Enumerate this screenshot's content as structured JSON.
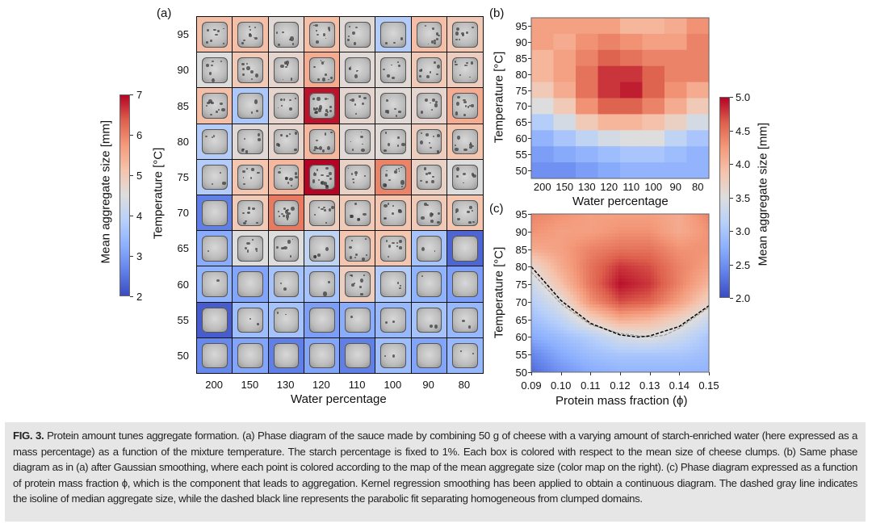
{
  "figure": {
    "panel_labels": {
      "a": "(a)",
      "b": "(b)",
      "c": "(c)"
    },
    "caption": {
      "label": "FIG. 3.",
      "text": " Protein amount tunes aggregate formation. (a) Phase diagram of the sauce made by combining 50 g of cheese with a varying amount of starch-enriched water (here expressed as a mass percentage) as a function of the mixture temperature. The starch percentage is fixed to 1%. Each box is colored with respect to the mean size of cheese clumps. (b) Same phase diagram as in (a) after Gaussian smoothing, where each point is colored according to the map of the mean aggregate size (color map on the right). (c) Phase diagram expressed as a function of protein mass fraction ϕ, which is the component that leads to aggregation. Kernel regression smoothing has been applied to obtain a continuous diagram. The dashed gray line indicates the isoline of median aggregate size, while the dashed black line represents the parabolic fit separating homogeneous from clumped domains."
    }
  },
  "colormap": {
    "name": "coolwarm",
    "low": "#3b4cc0",
    "mid": "#dddddd",
    "high": "#b40426"
  },
  "chart_data": [
    {
      "type": "heatmap",
      "panel": "a",
      "description_visual": "grid of sample photographs framed by color",
      "xlabel": "Water percentage",
      "ylabel": "Temperature [°C]",
      "categories": [
        "200",
        "150",
        "130",
        "120",
        "110",
        "100",
        "90",
        "80"
      ],
      "y_categories": [
        "95",
        "90",
        "85",
        "80",
        "75",
        "70",
        "65",
        "60",
        "55",
        "50"
      ],
      "values": [
        [
          5.2,
          5.2,
          4.6,
          5.2,
          4.6,
          3.8,
          5.2,
          5.0
        ],
        [
          4.5,
          5.0,
          4.7,
          5.5,
          4.6,
          4.6,
          5.0,
          4.9
        ],
        [
          5.2,
          3.7,
          4.7,
          6.9,
          4.7,
          4.6,
          4.7,
          5.5
        ],
        [
          3.8,
          4.6,
          4.7,
          5.3,
          4.6,
          4.6,
          4.9,
          5.1
        ],
        [
          3.8,
          5.1,
          5.3,
          7.0,
          4.8,
          6.0,
          4.8,
          4.5
        ],
        [
          2.6,
          5.0,
          6.1,
          4.9,
          5.0,
          5.1,
          5.0,
          5.1
        ],
        [
          3.2,
          4.5,
          4.5,
          4.0,
          5.1,
          5.1,
          3.6,
          2.3
        ],
        [
          3.3,
          3.1,
          3.6,
          3.6,
          4.9,
          3.8,
          3.3,
          3.0
        ],
        [
          2.2,
          3.5,
          3.6,
          3.0,
          3.2,
          3.4,
          3.6,
          3.4
        ],
        [
          2.7,
          3.1,
          2.6,
          3.1,
          2.6,
          3.5,
          3.1,
          3.4
        ]
      ],
      "colorbar": {
        "label": "Mean aggregate size [mm]",
        "range": [
          2,
          7
        ],
        "ticks": [
          "2",
          "3",
          "4",
          "5",
          "6",
          "7"
        ]
      }
    },
    {
      "type": "heatmap",
      "panel": "b",
      "xlabel": "Water percentage",
      "ylabel": "Temperature [°C]",
      "categories": [
        "200",
        "150",
        "130",
        "120",
        "110",
        "100",
        "90",
        "80"
      ],
      "y_categories": [
        "95",
        "90",
        "85",
        "80",
        "75",
        "70",
        "65",
        "60",
        "55",
        "50"
      ],
      "values": [
        [
          4.2,
          4.2,
          4.2,
          4.2,
          4.0,
          4.0,
          4.1,
          4.3
        ],
        [
          4.2,
          4.1,
          4.3,
          4.4,
          4.3,
          4.2,
          4.2,
          4.4
        ],
        [
          4.0,
          4.2,
          4.4,
          4.6,
          4.5,
          4.4,
          4.4,
          4.4
        ],
        [
          4.0,
          4.2,
          4.5,
          4.8,
          4.8,
          4.6,
          4.4,
          4.4
        ],
        [
          3.8,
          4.1,
          4.5,
          4.8,
          4.9,
          4.6,
          4.3,
          4.1
        ],
        [
          3.5,
          3.8,
          4.3,
          4.6,
          4.6,
          4.4,
          4.1,
          3.8
        ],
        [
          3.1,
          3.4,
          3.8,
          4.0,
          4.0,
          3.9,
          3.7,
          3.4
        ],
        [
          2.8,
          3.0,
          3.2,
          3.4,
          3.5,
          3.5,
          3.2,
          3.0
        ],
        [
          2.6,
          2.7,
          2.8,
          2.9,
          3.0,
          3.0,
          2.9,
          2.8
        ],
        [
          2.5,
          2.5,
          2.6,
          2.7,
          2.8,
          2.8,
          2.8,
          2.8
        ]
      ],
      "colorbar": {
        "label": "Mean aggregate size [mm]",
        "range": [
          2.0,
          5.0
        ],
        "ticks": [
          "2.0",
          "2.5",
          "3.0",
          "3.5",
          "4.0",
          "4.5",
          "5.0"
        ]
      }
    },
    {
      "type": "heatmap",
      "panel": "c",
      "xlabel": "Protein mass fraction (ϕ)",
      "ylabel": "Temperature [°C]",
      "xlim": [
        0.09,
        0.15
      ],
      "ylim": [
        50,
        95
      ],
      "x_ticks": [
        "0.09",
        "0.10",
        "0.11",
        "0.12",
        "0.13",
        "0.14",
        "0.15"
      ],
      "y_ticks": [
        "95",
        "90",
        "85",
        "80",
        "75",
        "70",
        "65",
        "60",
        "55",
        "50"
      ],
      "grid_x": [
        0.09,
        0.1,
        0.11,
        0.12,
        0.13,
        0.14,
        0.15
      ],
      "grid_y": [
        95,
        90,
        85,
        80,
        75,
        70,
        65,
        60,
        55,
        50
      ],
      "values": [
        [
          4.4,
          4.3,
          4.2,
          4.2,
          4.2,
          4.1,
          4.4
        ],
        [
          4.3,
          4.2,
          4.2,
          4.3,
          4.3,
          4.1,
          4.3
        ],
        [
          4.1,
          4.2,
          4.4,
          4.5,
          4.5,
          4.3,
          4.3
        ],
        [
          3.6,
          4.1,
          4.5,
          4.8,
          4.7,
          4.4,
          4.2
        ],
        [
          3.3,
          3.9,
          4.5,
          4.95,
          4.8,
          4.4,
          4.0
        ],
        [
          3.1,
          3.5,
          4.3,
          4.7,
          4.6,
          4.2,
          3.7
        ],
        [
          2.9,
          3.2,
          3.7,
          4.1,
          4.0,
          3.7,
          3.3
        ],
        [
          2.7,
          2.9,
          3.1,
          3.4,
          3.5,
          3.3,
          3.0
        ],
        [
          2.4,
          2.7,
          2.9,
          3.0,
          3.0,
          3.0,
          2.9
        ],
        [
          2.2,
          2.5,
          2.7,
          2.8,
          2.8,
          2.8,
          2.8
        ]
      ],
      "value_range": [
        2.0,
        5.0
      ],
      "lines": [
        {
          "style": "dashed",
          "color": "#999999",
          "role": "median isoline",
          "x": [
            0.09,
            0.1,
            0.11,
            0.12,
            0.13,
            0.135,
            0.14,
            0.15
          ],
          "y": [
            78.5,
            69.5,
            63.5,
            61.0,
            60.0,
            60.5,
            62.5,
            68.5
          ]
        },
        {
          "style": "dashed",
          "color": "#000000",
          "role": "parabolic fit",
          "x": [
            0.09,
            0.1,
            0.11,
            0.12,
            0.126,
            0.13,
            0.14,
            0.15
          ],
          "y": [
            80.0,
            70.4,
            63.9,
            60.6,
            60.0,
            60.3,
            63.0,
            68.9
          ]
        }
      ]
    }
  ]
}
